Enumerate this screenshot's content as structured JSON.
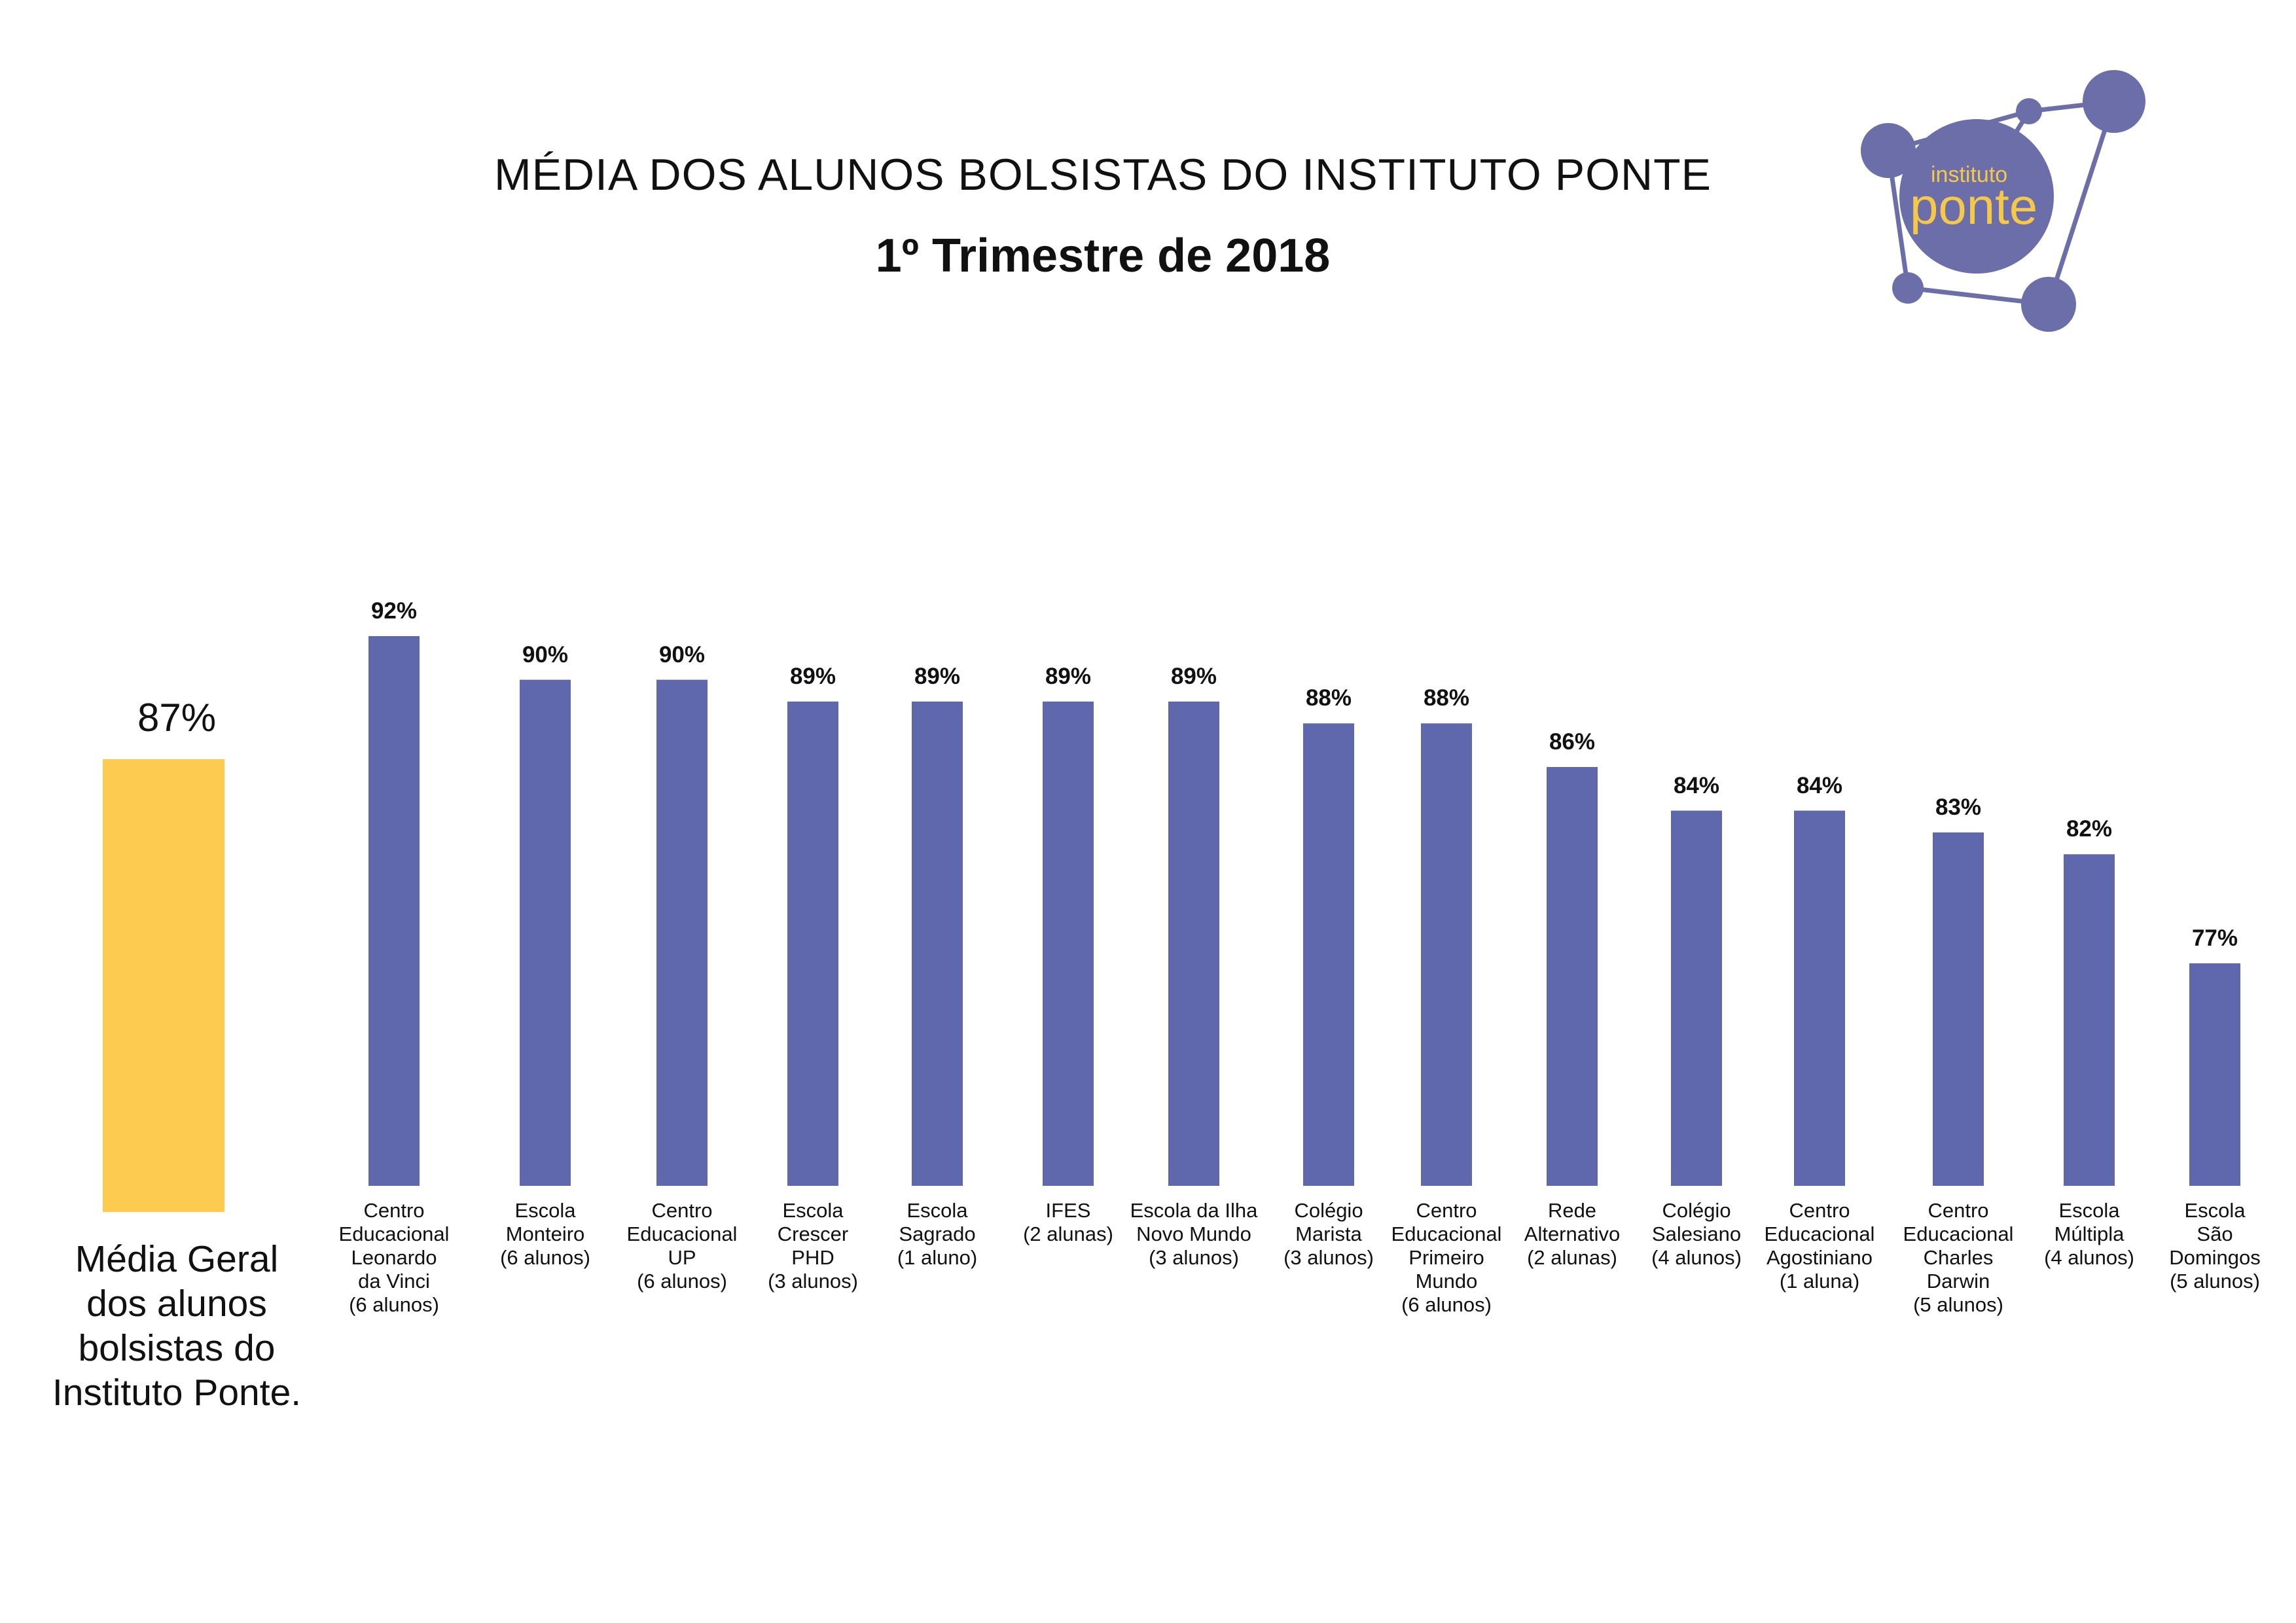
{
  "header": {
    "title": "MÉDIA DOS ALUNOS BOLSISTAS DO INSTITUTO PONTE",
    "subtitle": "1º Trimestre de 2018"
  },
  "logo": {
    "line1": "instituto",
    "line2": "ponte"
  },
  "summary": {
    "value_label": "87%",
    "caption": [
      "Média Geral",
      "dos alunos",
      "bolsistas do",
      "Instituto Ponte."
    ]
  },
  "colors": {
    "bar": "#5f68ad",
    "average_bar": "#fdcb4f",
    "logo_purple": "#6b6ea8",
    "logo_text": "#f5c84a"
  },
  "chart_data": {
    "type": "bar",
    "average": {
      "value": 87,
      "label": "87%"
    },
    "categories": [
      [
        "Centro",
        "Educacional",
        "Leonardo",
        "da Vinci",
        "(6 alunos)"
      ],
      [
        "Escola",
        "Monteiro",
        "(6 alunos)"
      ],
      [
        "Centro",
        "Educacional",
        "UP",
        "(6 alunos)"
      ],
      [
        "Escola",
        "Crescer",
        "PHD",
        "(3 alunos)"
      ],
      [
        "Escola",
        "Sagrado",
        "(1 aluno)"
      ],
      [
        "IFES",
        "(2 alunas)"
      ],
      [
        "Escola da Ilha",
        "Novo Mundo",
        "(3 alunos)"
      ],
      [
        "Colégio",
        "Marista",
        "(3 alunos)"
      ],
      [
        "Centro",
        "Educacional",
        "Primeiro",
        "Mundo",
        "(6 alunos)"
      ],
      [
        "Rede",
        "Alternativo",
        "(2 alunas)"
      ],
      [
        "Colégio",
        "Salesiano",
        "(4 alunos)"
      ],
      [
        "Centro",
        "Educacional",
        "Agostiniano",
        "(1 aluna)"
      ],
      [
        "Centro",
        "Educacional",
        "Charles",
        "Darwin",
        "(5 alunos)"
      ],
      [
        "Escola",
        "Múltipla",
        "(4 alunos)"
      ],
      [
        "Escola",
        "São",
        "Domingos",
        "(5 alunos)"
      ]
    ],
    "values": [
      92,
      90,
      90,
      89,
      89,
      89,
      89,
      88,
      88,
      86,
      84,
      84,
      83,
      82,
      77
    ],
    "value_labels": [
      "92%",
      "90%",
      "90%",
      "89%",
      "89%",
      "89%",
      "89%",
      "88%",
      "88%",
      "86%",
      "84%",
      "84%",
      "83%",
      "82%",
      "77%"
    ],
    "grid": false
  }
}
